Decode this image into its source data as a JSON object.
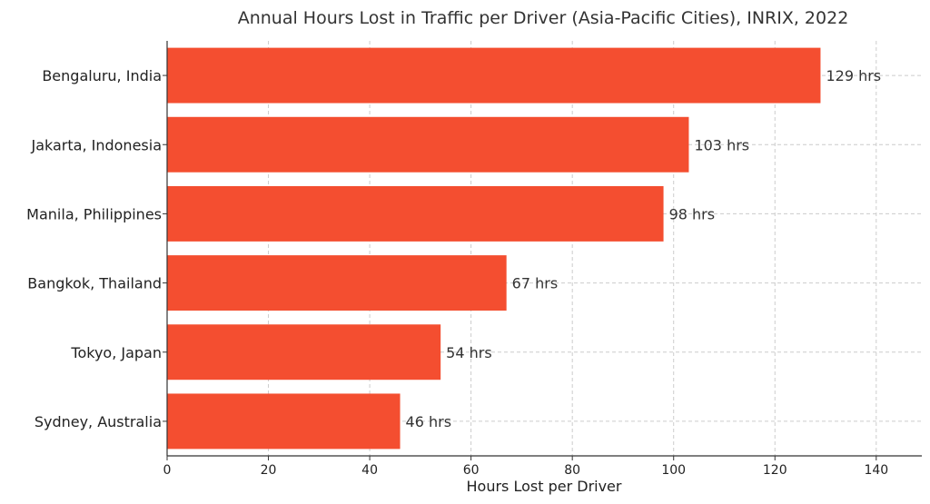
{
  "chart_data": {
    "type": "bar",
    "orientation": "horizontal",
    "title": "Annual Hours Lost in Traffic per Driver (Asia-Pacific Cities), INRIX, 2022",
    "xlabel": "Hours Lost per Driver",
    "ylabel": "",
    "categories": [
      "Bengaluru, India",
      "Jakarta, Indonesia",
      "Manila, Philippines",
      "Bangkok, Thailand",
      "Tokyo, Japan",
      "Sydney, Australia"
    ],
    "values": [
      129,
      103,
      98,
      67,
      54,
      46
    ],
    "data_labels": [
      "129 hrs",
      "103 hrs",
      "98 hrs",
      "67 hrs",
      "54 hrs",
      "46 hrs"
    ],
    "xlim": [
      0,
      149
    ],
    "xticks": [
      0,
      20,
      40,
      60,
      80,
      100,
      120,
      140
    ],
    "bar_color": "#f44e30",
    "grid": true
  }
}
